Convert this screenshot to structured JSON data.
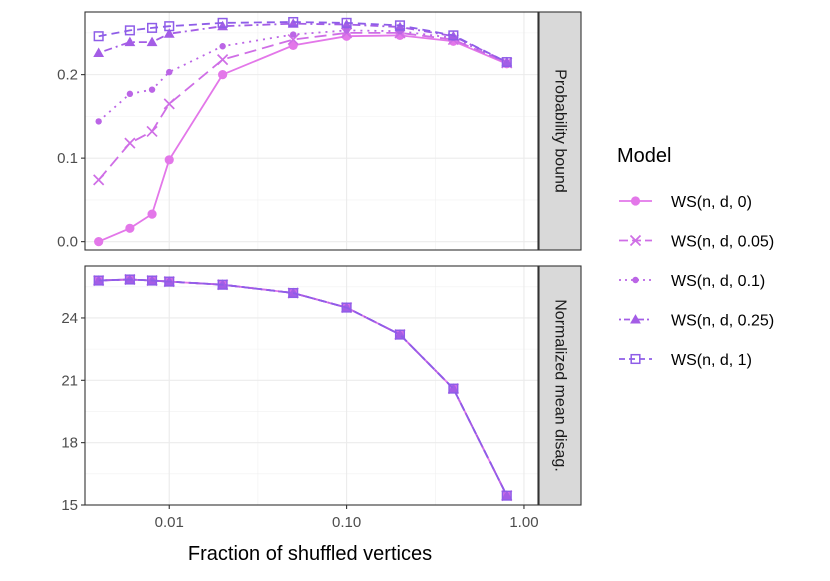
{
  "chart_data": {
    "type": "line",
    "xlabel": "Fraction of shuffled vertices",
    "xscale": "log10",
    "xlim": [
      0.00335,
      1.2
    ],
    "x_ticks": [
      0.01,
      0.1,
      1.0
    ],
    "x_tick_labels": [
      "0.01",
      "0.10",
      "1.00"
    ],
    "x": [
      0.004,
      0.006,
      0.008,
      0.01,
      0.02,
      0.05,
      0.1,
      0.2,
      0.4,
      0.8
    ],
    "legend": {
      "title": "Model",
      "position": "right",
      "entries": [
        "WS(n, d, 0)",
        "WS(n, d, 0.05)",
        "WS(n, d, 0.1)",
        "WS(n, d, 0.25)",
        "WS(n, d, 1)"
      ]
    },
    "series_style": [
      {
        "name": "WS(n, d, 0)",
        "color": "#e377e9",
        "shape": "circle",
        "dash": "solid"
      },
      {
        "name": "WS(n, d, 0.05)",
        "color": "#cf6ee6",
        "shape": "cross",
        "dash": "longdash"
      },
      {
        "name": "WS(n, d, 0.1)",
        "color": "#bb65e6",
        "shape": "dot",
        "dash": "dotted"
      },
      {
        "name": "WS(n, d, 0.25)",
        "color": "#a45de6",
        "shape": "triangle",
        "dash": "dotdash"
      },
      {
        "name": "WS(n, d, 1)",
        "color": "#8e5de8",
        "shape": "square-open",
        "dash": "dashed"
      }
    ],
    "panels": [
      {
        "strip_label": "Probability bound",
        "ylim": [
          -0.01,
          0.275
        ],
        "y_ticks": [
          0.0,
          0.1,
          0.2
        ],
        "y_tick_labels": [
          "0.0",
          "0.1",
          "0.2"
        ],
        "series": [
          {
            "name": "WS(n, d, 0)",
            "values": [
              0.0,
              0.016,
              0.033,
              0.098,
              0.2,
              0.235,
              0.246,
              0.247,
              0.24,
              0.213
            ]
          },
          {
            "name": "WS(n, d, 0.05)",
            "values": [
              0.074,
              0.118,
              0.132,
              0.165,
              0.218,
              0.242,
              0.25,
              0.25,
              0.242,
              0.214
            ]
          },
          {
            "name": "WS(n, d, 0.1)",
            "values": [
              0.144,
              0.177,
              0.182,
              0.203,
              0.234,
              0.248,
              0.253,
              0.252,
              0.244,
              0.214
            ]
          },
          {
            "name": "WS(n, d, 0.25)",
            "values": [
              0.226,
              0.239,
              0.239,
              0.249,
              0.258,
              0.261,
              0.26,
              0.257,
              0.246,
              0.215
            ]
          },
          {
            "name": "WS(n, d, 1)",
            "values": [
              0.246,
              0.253,
              0.256,
              0.258,
              0.262,
              0.263,
              0.262,
              0.259,
              0.247,
              0.215
            ]
          }
        ]
      },
      {
        "strip_label": "Normalized mean disag.",
        "ylim": [
          15.0,
          26.5
        ],
        "y_ticks": [
          15,
          18,
          21,
          24
        ],
        "y_tick_labels": [
          "15",
          "18",
          "21",
          "24"
        ],
        "series": [
          {
            "name": "WS(n, d, 0)",
            "values": [
              25.8,
              25.85,
              25.8,
              25.75,
              25.6,
              25.2,
              24.5,
              23.2,
              20.6,
              15.45
            ]
          },
          {
            "name": "WS(n, d, 0.05)",
            "values": [
              25.8,
              25.85,
              25.8,
              25.75,
              25.6,
              25.2,
              24.5,
              23.2,
              20.6,
              15.45
            ]
          },
          {
            "name": "WS(n, d, 0.1)",
            "values": [
              25.8,
              25.85,
              25.8,
              25.75,
              25.6,
              25.2,
              24.5,
              23.2,
              20.6,
              15.45
            ]
          },
          {
            "name": "WS(n, d, 0.25)",
            "values": [
              25.8,
              25.85,
              25.8,
              25.75,
              25.6,
              25.2,
              24.5,
              23.2,
              20.6,
              15.45
            ]
          },
          {
            "name": "WS(n, d, 1)",
            "values": [
              25.8,
              25.85,
              25.8,
              25.75,
              25.6,
              25.2,
              24.5,
              23.2,
              20.6,
              15.45
            ]
          }
        ]
      }
    ]
  }
}
